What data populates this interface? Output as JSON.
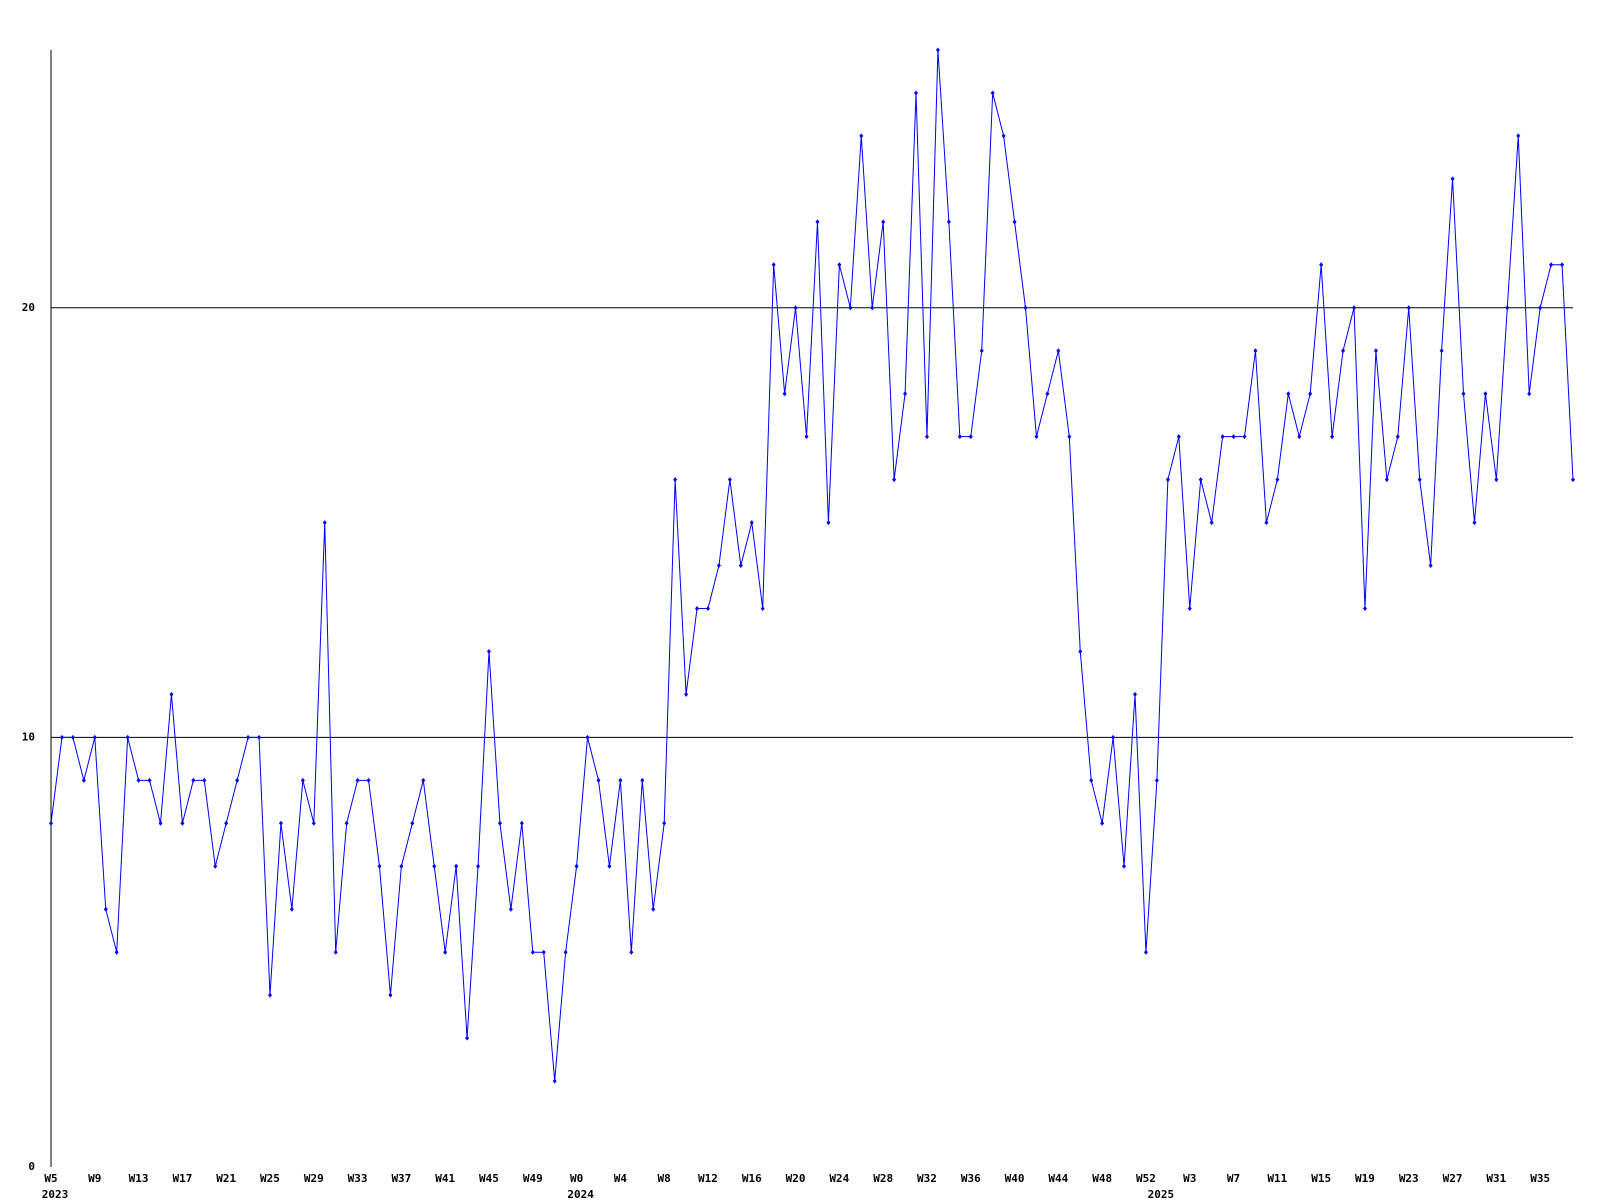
{
  "chart_data": {
    "type": "line",
    "categories": [
      "W5",
      null,
      null,
      null,
      "W9",
      null,
      null,
      null,
      "W13",
      null,
      null,
      null,
      "W17",
      null,
      null,
      null,
      "W21",
      null,
      null,
      null,
      "W25",
      null,
      null,
      null,
      "W29",
      null,
      null,
      null,
      "W33",
      null,
      null,
      null,
      "W37",
      null,
      null,
      null,
      "W41",
      null,
      null,
      null,
      "W45",
      null,
      null,
      null,
      "W49",
      null,
      null,
      null,
      "W0",
      null,
      null,
      null,
      "W4",
      null,
      null,
      null,
      "W8",
      null,
      null,
      null,
      "W12",
      null,
      null,
      null,
      "W16",
      null,
      null,
      null,
      "W20",
      null,
      null,
      null,
      "W24",
      null,
      null,
      null,
      "W28",
      null,
      null,
      null,
      "W32",
      null,
      null,
      null,
      "W36",
      null,
      null,
      null,
      "W40",
      null,
      null,
      null,
      "W44",
      null,
      null,
      null,
      "W48",
      null,
      null,
      null,
      "W52",
      null,
      null,
      null,
      "W3",
      null,
      null,
      null,
      "W7",
      null,
      null,
      null,
      "W11",
      null,
      null,
      null,
      "W15",
      null,
      null,
      null,
      "W19",
      null,
      null,
      null,
      "W23",
      null,
      null,
      null,
      "W27",
      null,
      null,
      null,
      "W31",
      null,
      null,
      null,
      "W35",
      null,
      null,
      null
    ],
    "years": [
      "2023",
      null,
      null,
      null,
      null,
      null,
      null,
      null,
      null,
      null,
      null,
      null,
      null,
      null,
      null,
      null,
      null,
      null,
      null,
      null,
      null,
      null,
      null,
      null,
      null,
      null,
      null,
      null,
      null,
      null,
      null,
      null,
      null,
      null,
      null,
      null,
      null,
      null,
      null,
      null,
      null,
      null,
      null,
      null,
      null,
      null,
      null,
      null,
      "2024",
      null,
      null,
      null,
      null,
      null,
      null,
      null,
      null,
      null,
      null,
      null,
      null,
      null,
      null,
      null,
      null,
      null,
      null,
      null,
      null,
      null,
      null,
      null,
      null,
      null,
      null,
      null,
      null,
      null,
      null,
      null,
      null,
      null,
      null,
      null,
      null,
      null,
      null,
      null,
      null,
      null,
      null,
      null,
      null,
      null,
      null,
      null,
      null,
      null,
      null,
      null,
      null,
      "2025",
      null,
      null,
      null,
      null,
      null,
      null,
      null,
      null,
      null,
      null,
      null,
      null,
      null,
      null,
      null,
      null,
      null,
      null,
      null,
      null,
      null,
      null,
      null,
      null,
      null,
      null,
      null,
      null,
      null,
      null,
      null,
      null,
      null,
      null,
      null,
      null,
      null
    ],
    "values": [
      8,
      10,
      10,
      9,
      10,
      6,
      5,
      10,
      9,
      9,
      8,
      11,
      8,
      9,
      9,
      7,
      8,
      9,
      10,
      10,
      4,
      8,
      6,
      9,
      8,
      15,
      5,
      8,
      9,
      9,
      7,
      4,
      7,
      8,
      9,
      7,
      5,
      7,
      3,
      7,
      12,
      8,
      6,
      8,
      5,
      5,
      2,
      5,
      7,
      10,
      9,
      7,
      9,
      5,
      9,
      6,
      8,
      16,
      11,
      13,
      13,
      14,
      16,
      14,
      15,
      13,
      21,
      18,
      20,
      17,
      22,
      15,
      21,
      20,
      24,
      20,
      22,
      16,
      18,
      25,
      17,
      26,
      22,
      17,
      17,
      19,
      25,
      24,
      22,
      20,
      17,
      18,
      19,
      17,
      12,
      9,
      8,
      10,
      7,
      11,
      5,
      9,
      16,
      17,
      13,
      16,
      15,
      17,
      17,
      17,
      19,
      15,
      16,
      18,
      17,
      18,
      21,
      17,
      19,
      20,
      13,
      19,
      16,
      17,
      20,
      16,
      14,
      19,
      23,
      18,
      15,
      18,
      16,
      20,
      24,
      18,
      20,
      21,
      21,
      16
    ],
    "color": "#0000ff",
    "ylim": [
      0,
      26
    ],
    "yticks": [
      0,
      10,
      20
    ],
    "grid": true
  }
}
